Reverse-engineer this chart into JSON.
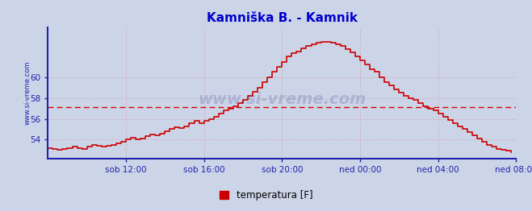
{
  "title": "Kamniška B. - Kamnik",
  "title_color": "#0000cc",
  "bg_color": "#ccd5e8",
  "plot_bg_color": "#ccd5e8",
  "line_color": "#cc0000",
  "avg_line_color": "#dd0000",
  "avg_line_value": 57.1,
  "ylabel_left": "www.si-vreme.com",
  "legend_label": "temperatura [F]",
  "legend_color": "#cc0000",
  "yticks": [
    54,
    56,
    58,
    60
  ],
  "ylim": [
    52.2,
    64.8
  ],
  "grid_color": "#cc9999",
  "axis_color": "#2222aa",
  "tick_color": "#2222aa",
  "xtick_labels": [
    "sob 12:00",
    "sob 16:00",
    "sob 20:00",
    "ned 00:00",
    "ned 04:00",
    "ned 08:00"
  ],
  "watermark": "www.si-vreme.com",
  "xlim": [
    0,
    24
  ],
  "xtick_positions": [
    4,
    8,
    12,
    16,
    20,
    24
  ],
  "x_hours": [
    0.0,
    0.25,
    0.5,
    0.75,
    1.0,
    1.25,
    1.5,
    1.75,
    2.0,
    2.25,
    2.5,
    2.75,
    3.0,
    3.25,
    3.5,
    3.75,
    4.0,
    4.25,
    4.5,
    4.75,
    5.0,
    5.25,
    5.5,
    5.75,
    6.0,
    6.25,
    6.5,
    6.75,
    7.0,
    7.25,
    7.5,
    7.75,
    8.0,
    8.25,
    8.5,
    8.75,
    9.0,
    9.25,
    9.5,
    9.75,
    10.0,
    10.25,
    10.5,
    10.75,
    11.0,
    11.25,
    11.5,
    11.75,
    12.0,
    12.25,
    12.5,
    12.75,
    13.0,
    13.25,
    13.5,
    13.75,
    14.0,
    14.25,
    14.5,
    14.75,
    15.0,
    15.25,
    15.5,
    15.75,
    16.0,
    16.25,
    16.5,
    16.75,
    17.0,
    17.25,
    17.5,
    17.75,
    18.0,
    18.25,
    18.5,
    18.75,
    19.0,
    19.25,
    19.5,
    19.75,
    20.0,
    20.25,
    20.5,
    20.75,
    21.0,
    21.25,
    21.5,
    21.75,
    22.0,
    22.25,
    22.5,
    22.75,
    23.0,
    23.25,
    23.5,
    23.75
  ],
  "temp_values": [
    53.2,
    53.1,
    53.0,
    53.1,
    53.2,
    53.3,
    53.2,
    53.1,
    53.3,
    53.5,
    53.4,
    53.3,
    53.4,
    53.5,
    53.6,
    53.8,
    54.0,
    54.2,
    54.0,
    54.1,
    54.3,
    54.5,
    54.4,
    54.6,
    54.8,
    55.0,
    55.2,
    55.1,
    55.3,
    55.6,
    55.8,
    55.6,
    55.8,
    56.0,
    56.2,
    56.5,
    56.8,
    57.0,
    57.2,
    57.5,
    57.8,
    58.2,
    58.6,
    59.0,
    59.5,
    60.0,
    60.5,
    61.0,
    61.5,
    62.0,
    62.3,
    62.5,
    62.8,
    63.0,
    63.2,
    63.3,
    63.4,
    63.4,
    63.3,
    63.2,
    63.0,
    62.7,
    62.4,
    62.0,
    61.6,
    61.2,
    60.8,
    60.5,
    60.0,
    59.5,
    59.2,
    58.8,
    58.5,
    58.2,
    58.0,
    57.8,
    57.5,
    57.2,
    57.0,
    56.8,
    56.5,
    56.2,
    55.9,
    55.6,
    55.3,
    55.0,
    54.7,
    54.4,
    54.1,
    53.8,
    53.5,
    53.3,
    53.1,
    53.0,
    52.9,
    52.8
  ]
}
